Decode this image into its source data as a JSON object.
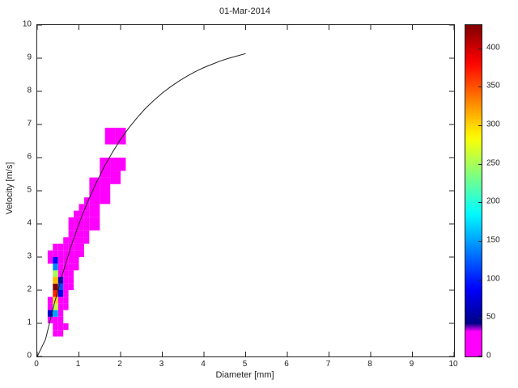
{
  "chart_data": {
    "type": "heatmap",
    "title": "01-Mar-2014",
    "xlabel": "Diameter [mm]",
    "ylabel": "Velocity [m/s]",
    "xlim": [
      0,
      10
    ],
    "ylim": [
      0,
      10
    ],
    "grid": false,
    "x_ticks": [
      0,
      1,
      2,
      3,
      4,
      5,
      6,
      7,
      8,
      9,
      10
    ],
    "y_ticks": [
      0,
      1,
      2,
      3,
      4,
      5,
      6,
      7,
      8,
      9,
      10
    ],
    "colorbar": {
      "min": 0,
      "max": 430,
      "ticks": [
        0,
        50,
        100,
        150,
        200,
        250,
        300,
        350,
        400
      ],
      "zero_color": "#ff00ff",
      "zero_threshold": 40,
      "colormap": "jet"
    },
    "curve": {
      "name": "terminal-velocity-curve",
      "color": "#222222",
      "x": [
        0,
        0.2,
        0.4,
        0.6,
        0.8,
        1.0,
        1.2,
        1.4,
        1.6,
        1.8,
        2.0,
        2.2,
        2.4,
        2.6,
        2.8,
        3.0,
        3.2,
        3.4,
        3.6,
        3.8,
        4.0,
        4.2,
        4.4,
        4.6,
        4.8,
        5.0
      ],
      "y": [
        0,
        0.52,
        1.55,
        2.46,
        3.28,
        4.0,
        4.64,
        5.2,
        5.71,
        6.15,
        6.55,
        6.9,
        7.21,
        7.49,
        7.73,
        7.95,
        8.14,
        8.31,
        8.46,
        8.6,
        8.72,
        8.82,
        8.92,
        9.0,
        9.07,
        9.14
      ]
    },
    "cell_format": "x,y,width,height,count",
    "cells": [
      [
        0.25,
        1.0,
        0.125,
        0.2,
        12
      ],
      [
        0.25,
        1.2,
        0.125,
        0.2,
        70
      ],
      [
        0.25,
        1.4,
        0.125,
        0.2,
        20
      ],
      [
        0.25,
        1.6,
        0.125,
        0.2,
        15
      ],
      [
        0.25,
        2.8,
        0.125,
        0.2,
        10
      ],
      [
        0.25,
        3.0,
        0.125,
        0.2,
        14
      ],
      [
        0.375,
        0.6,
        0.125,
        0.2,
        10
      ],
      [
        0.375,
        0.8,
        0.125,
        0.2,
        18
      ],
      [
        0.375,
        1.0,
        0.125,
        0.2,
        35
      ],
      [
        0.375,
        1.2,
        0.125,
        0.2,
        150
      ],
      [
        0.375,
        1.4,
        0.125,
        0.2,
        260
      ],
      [
        0.375,
        1.6,
        0.125,
        0.2,
        300
      ],
      [
        0.375,
        1.8,
        0.125,
        0.2,
        370
      ],
      [
        0.375,
        2.0,
        0.125,
        0.2,
        430
      ],
      [
        0.375,
        2.2,
        0.125,
        0.2,
        310
      ],
      [
        0.375,
        2.4,
        0.125,
        0.2,
        250
      ],
      [
        0.375,
        2.6,
        0.125,
        0.2,
        140
      ],
      [
        0.375,
        2.8,
        0.125,
        0.2,
        90
      ],
      [
        0.375,
        3.0,
        0.125,
        0.2,
        30
      ],
      [
        0.375,
        3.2,
        0.125,
        0.2,
        15
      ],
      [
        0.5,
        0.6,
        0.125,
        0.2,
        8
      ],
      [
        0.5,
        0.8,
        0.125,
        0.2,
        10
      ],
      [
        0.5,
        1.0,
        0.125,
        0.2,
        14
      ],
      [
        0.5,
        1.2,
        0.125,
        0.2,
        18
      ],
      [
        0.5,
        1.4,
        0.125,
        0.2,
        24
      ],
      [
        0.5,
        1.6,
        0.125,
        0.2,
        30
      ],
      [
        0.5,
        1.8,
        0.125,
        0.2,
        80
      ],
      [
        0.5,
        2.0,
        0.125,
        0.2,
        120
      ],
      [
        0.5,
        2.2,
        0.125,
        0.2,
        70
      ],
      [
        0.5,
        2.4,
        0.125,
        0.2,
        35
      ],
      [
        0.5,
        2.6,
        0.125,
        0.2,
        28
      ],
      [
        0.5,
        2.8,
        0.125,
        0.2,
        22
      ],
      [
        0.5,
        3.0,
        0.125,
        0.2,
        16
      ],
      [
        0.5,
        3.2,
        0.125,
        0.2,
        10
      ],
      [
        0.625,
        0.8,
        0.125,
        0.2,
        6
      ],
      [
        0.625,
        1.4,
        0.125,
        0.2,
        8
      ],
      [
        0.625,
        1.6,
        0.125,
        0.2,
        10
      ],
      [
        0.625,
        1.8,
        0.125,
        0.2,
        14
      ],
      [
        0.625,
        2.0,
        0.125,
        0.2,
        18
      ],
      [
        0.625,
        2.2,
        0.125,
        0.2,
        22
      ],
      [
        0.625,
        2.4,
        0.125,
        0.2,
        25
      ],
      [
        0.625,
        2.6,
        0.125,
        0.2,
        20
      ],
      [
        0.625,
        2.8,
        0.125,
        0.2,
        16
      ],
      [
        0.625,
        3.0,
        0.125,
        0.2,
        12
      ],
      [
        0.625,
        3.2,
        0.125,
        0.2,
        10
      ],
      [
        0.625,
        3.4,
        0.125,
        0.2,
        8
      ],
      [
        0.75,
        2.0,
        0.125,
        0.2,
        6
      ],
      [
        0.75,
        2.2,
        0.125,
        0.2,
        8
      ],
      [
        0.75,
        2.4,
        0.125,
        0.2,
        12
      ],
      [
        0.75,
        2.6,
        0.125,
        0.2,
        16
      ],
      [
        0.75,
        2.8,
        0.125,
        0.2,
        18
      ],
      [
        0.75,
        3.0,
        0.125,
        0.2,
        20
      ],
      [
        0.75,
        3.2,
        0.125,
        0.2,
        16
      ],
      [
        0.75,
        3.4,
        0.125,
        0.2,
        12
      ],
      [
        0.75,
        3.6,
        0.125,
        0.2,
        10
      ],
      [
        0.75,
        3.8,
        0.125,
        0.2,
        8
      ],
      [
        0.75,
        4.0,
        0.125,
        0.2,
        6
      ],
      [
        0.875,
        2.6,
        0.125,
        0.2,
        6
      ],
      [
        0.875,
        2.8,
        0.125,
        0.2,
        8
      ],
      [
        0.875,
        3.0,
        0.125,
        0.2,
        10
      ],
      [
        0.875,
        3.2,
        0.125,
        0.2,
        12
      ],
      [
        0.875,
        3.4,
        0.125,
        0.2,
        14
      ],
      [
        0.875,
        3.6,
        0.125,
        0.2,
        12
      ],
      [
        0.875,
        3.8,
        0.125,
        0.2,
        10
      ],
      [
        0.875,
        4.0,
        0.125,
        0.2,
        8
      ],
      [
        0.875,
        4.2,
        0.125,
        0.2,
        6
      ],
      [
        1.0,
        3.0,
        0.125,
        0.2,
        6
      ],
      [
        1.0,
        3.2,
        0.125,
        0.2,
        8
      ],
      [
        1.0,
        3.4,
        0.125,
        0.2,
        10
      ],
      [
        1.0,
        3.6,
        0.125,
        0.2,
        10
      ],
      [
        1.0,
        3.8,
        0.125,
        0.2,
        8
      ],
      [
        1.0,
        4.0,
        0.125,
        0.2,
        8
      ],
      [
        1.0,
        4.2,
        0.125,
        0.2,
        6
      ],
      [
        1.0,
        4.4,
        0.125,
        0.2,
        5
      ],
      [
        1.125,
        3.4,
        0.125,
        0.2,
        5
      ],
      [
        1.125,
        3.6,
        0.125,
        0.2,
        6
      ],
      [
        1.125,
        3.8,
        0.125,
        0.2,
        8
      ],
      [
        1.125,
        4.0,
        0.125,
        0.2,
        8
      ],
      [
        1.125,
        4.2,
        0.125,
        0.2,
        6
      ],
      [
        1.125,
        4.4,
        0.125,
        0.2,
        5
      ],
      [
        1.125,
        4.6,
        0.125,
        0.2,
        4
      ],
      [
        1.25,
        3.8,
        0.25,
        0.4,
        5
      ],
      [
        1.25,
        4.2,
        0.25,
        0.4,
        8
      ],
      [
        1.25,
        4.6,
        0.25,
        0.4,
        6
      ],
      [
        1.25,
        5.0,
        0.25,
        0.4,
        4
      ],
      [
        1.5,
        4.6,
        0.25,
        0.4,
        5
      ],
      [
        1.5,
        5.0,
        0.25,
        0.4,
        7
      ],
      [
        1.5,
        5.4,
        0.25,
        0.6,
        6
      ],
      [
        1.75,
        5.2,
        0.25,
        0.4,
        5
      ],
      [
        1.75,
        5.6,
        0.25,
        0.4,
        5
      ],
      [
        2.0,
        5.6,
        0.125,
        0.4,
        4
      ],
      [
        1.625,
        6.4,
        0.25,
        0.5,
        5
      ],
      [
        1.875,
        6.4,
        0.25,
        0.5,
        6
      ]
    ]
  }
}
